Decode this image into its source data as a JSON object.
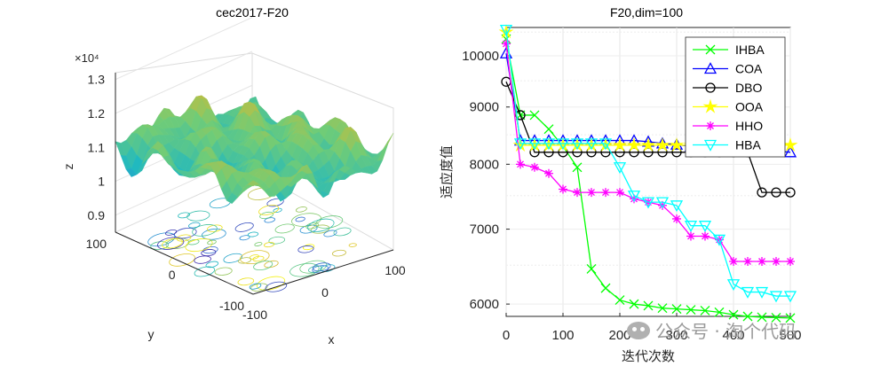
{
  "chart_data": [
    {
      "type": "surface",
      "title": "cec2017-F20",
      "xlabel": "x",
      "ylabel": "y",
      "zlabel": "z",
      "z_exponent_label": "×10⁴",
      "x_ticks": [
        "-100",
        "0",
        "100"
      ],
      "y_ticks": [
        "-100",
        "0",
        "100"
      ],
      "z_ticks": [
        "0.9",
        "1",
        "1.1",
        "1.2",
        "1.3"
      ],
      "xlim": [
        -100,
        100
      ],
      "ylim": [
        -100,
        100
      ],
      "zlim": [
        0.85,
        1.32
      ],
      "colormap": [
        "#3e26a8",
        "#2e7fd9",
        "#1fb8c1",
        "#70cc77",
        "#d8ba30",
        "#f9fb0e"
      ]
    },
    {
      "type": "line",
      "title": "F20,dim=100",
      "xlabel": "迭代次数",
      "ylabel": "适应度值",
      "xlim": [
        0,
        500
      ],
      "ylim": [
        5850,
        10600
      ],
      "y_scale": "log",
      "x_ticks": [
        0,
        100,
        200,
        300,
        400,
        500
      ],
      "y_ticks": [
        6000,
        7000,
        8000,
        9000,
        10000
      ],
      "grid": true,
      "legend_position": "top-right",
      "x": [
        0,
        25,
        50,
        75,
        100,
        125,
        150,
        175,
        200,
        225,
        250,
        275,
        300,
        325,
        350,
        375,
        400,
        425,
        450,
        475,
        500
      ],
      "series": [
        {
          "name": "IHBA",
          "color": "#00ff00",
          "marker": "x",
          "values": [
            10350,
            8850,
            8850,
            8600,
            8300,
            7950,
            6450,
            6200,
            6050,
            6000,
            5980,
            5950,
            5940,
            5930,
            5920,
            5900,
            5870,
            5850,
            5840,
            5835,
            5830
          ]
        },
        {
          "name": "COA",
          "color": "#0000ff",
          "marker": "triangle",
          "values": [
            10050,
            8400,
            8400,
            8400,
            8400,
            8400,
            8400,
            8400,
            8400,
            8400,
            8380,
            8350,
            8330,
            8300,
            8280,
            8260,
            8250,
            8240,
            8230,
            8220,
            8200
          ]
        },
        {
          "name": "DBO",
          "color": "#000000",
          "marker": "circle",
          "values": [
            9480,
            8850,
            8200,
            8200,
            8200,
            8200,
            8200,
            8200,
            8200,
            8200,
            8200,
            8200,
            8200,
            8200,
            8200,
            8200,
            8200,
            8200,
            7550,
            7550,
            7550
          ]
        },
        {
          "name": "OOA",
          "color": "#ffff00",
          "marker": "star",
          "values": [
            10500,
            8320,
            8320,
            8320,
            8320,
            8320,
            8320,
            8320,
            8320,
            8320,
            8320,
            8320,
            8320,
            8320,
            8320,
            8320,
            8320,
            8320,
            8320,
            8320,
            8320
          ]
        },
        {
          "name": "HHO",
          "color": "#ff00ff",
          "marker": "asterisk",
          "values": [
            10250,
            8000,
            7950,
            7850,
            7600,
            7550,
            7550,
            7550,
            7550,
            7450,
            7400,
            7350,
            7150,
            6900,
            6900,
            6850,
            6550,
            6550,
            6550,
            6550,
            6550
          ]
        },
        {
          "name": "HBA",
          "color": "#00ffff",
          "marker": "triangle-down",
          "values": [
            10550,
            8350,
            8350,
            8350,
            8350,
            8350,
            8350,
            8350,
            7950,
            7500,
            7400,
            7400,
            7350,
            7050,
            7050,
            6850,
            6250,
            6150,
            6150,
            6100,
            6100
          ]
        }
      ]
    }
  ],
  "watermark": {
    "text": "公众号 · 淘个代码",
    "icon": "wechat-icon"
  }
}
